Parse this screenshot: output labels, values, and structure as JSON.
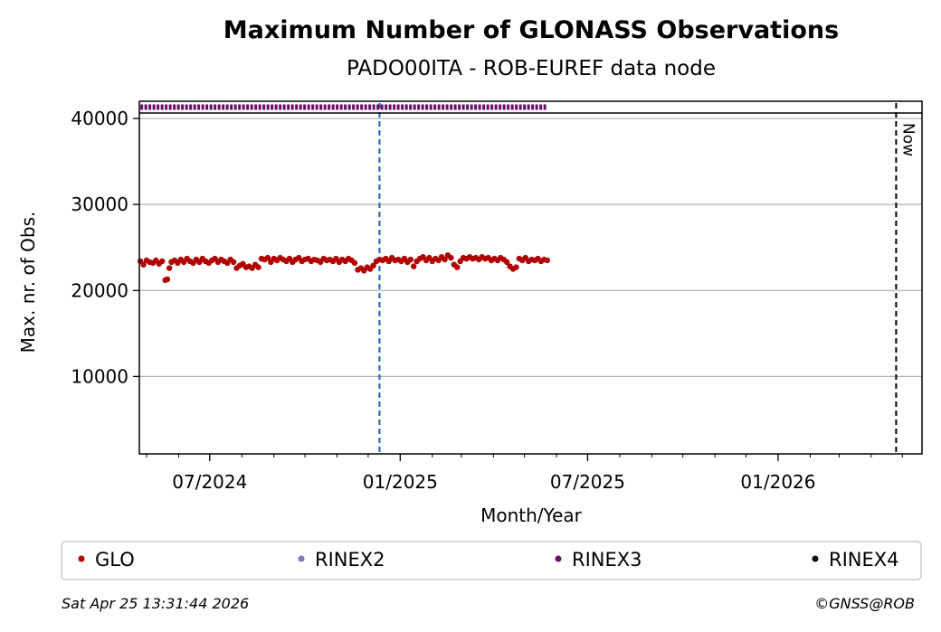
{
  "chart_data": {
    "type": "scatter",
    "title": "Maximum Number of GLONASS Observations",
    "subtitle": "PADO00ITA - ROB-EUREF data node",
    "xlabel": "Month/Year",
    "ylabel": "Max. nr. of Obs.",
    "x_ticks": [
      {
        "date": "2024-07-01",
        "label": "07/2024"
      },
      {
        "date": "2025-01-01",
        "label": "01/2025"
      },
      {
        "date": "2025-07-01",
        "label": "07/2025"
      },
      {
        "date": "2026-01-01",
        "label": "01/2026"
      }
    ],
    "y_ticks": [
      10000,
      20000,
      30000,
      40000
    ],
    "xlim": [
      "2024-04-24",
      "2026-05-20"
    ],
    "ylim": [
      1000,
      42000
    ],
    "grid": "horizontal",
    "vertical_markers": [
      {
        "date": "2024-12-12",
        "color": "#1a5fb4",
        "style": "dashed",
        "label": ""
      },
      {
        "date": "2026-04-25",
        "color": "#000000",
        "style": "dashed",
        "label": "Now"
      }
    ],
    "series": [
      {
        "name": "GLO",
        "color": "#b00000",
        "points": [
          [
            "2024-04-25",
            23400
          ],
          [
            "2024-04-28",
            23000
          ],
          [
            "2024-05-01",
            23500
          ],
          [
            "2024-05-04",
            23300
          ],
          [
            "2024-05-07",
            23200
          ],
          [
            "2024-05-10",
            23500
          ],
          [
            "2024-05-13",
            23100
          ],
          [
            "2024-05-16",
            23400
          ],
          [
            "2024-05-19",
            21200
          ],
          [
            "2024-05-21",
            21300
          ],
          [
            "2024-05-23",
            22600
          ],
          [
            "2024-05-25",
            23300
          ],
          [
            "2024-05-28",
            23500
          ],
          [
            "2024-05-31",
            23200
          ],
          [
            "2024-06-03",
            23600
          ],
          [
            "2024-06-06",
            23300
          ],
          [
            "2024-06-09",
            23700
          ],
          [
            "2024-06-12",
            23400
          ],
          [
            "2024-06-15",
            23200
          ],
          [
            "2024-06-18",
            23600
          ],
          [
            "2024-06-21",
            23300
          ],
          [
            "2024-06-24",
            23700
          ],
          [
            "2024-06-27",
            23400
          ],
          [
            "2024-06-30",
            23200
          ],
          [
            "2024-07-03",
            23500
          ],
          [
            "2024-07-06",
            23700
          ],
          [
            "2024-07-09",
            23300
          ],
          [
            "2024-07-12",
            23600
          ],
          [
            "2024-07-15",
            23400
          ],
          [
            "2024-07-18",
            23200
          ],
          [
            "2024-07-21",
            23600
          ],
          [
            "2024-07-24",
            23300
          ],
          [
            "2024-07-27",
            22600
          ],
          [
            "2024-07-30",
            22900
          ],
          [
            "2024-08-02",
            23100
          ],
          [
            "2024-08-05",
            22700
          ],
          [
            "2024-08-08",
            22800
          ],
          [
            "2024-08-11",
            22600
          ],
          [
            "2024-08-14",
            23000
          ],
          [
            "2024-08-17",
            22700
          ],
          [
            "2024-08-20",
            23700
          ],
          [
            "2024-08-23",
            23600
          ],
          [
            "2024-08-26",
            23800
          ],
          [
            "2024-08-29",
            23300
          ],
          [
            "2024-09-01",
            23700
          ],
          [
            "2024-09-04",
            23500
          ],
          [
            "2024-09-07",
            23800
          ],
          [
            "2024-09-10",
            23600
          ],
          [
            "2024-09-13",
            23400
          ],
          [
            "2024-09-16",
            23700
          ],
          [
            "2024-09-19",
            23300
          ],
          [
            "2024-09-22",
            23600
          ],
          [
            "2024-09-25",
            23800
          ],
          [
            "2024-09-28",
            23400
          ],
          [
            "2024-10-01",
            23600
          ],
          [
            "2024-10-04",
            23700
          ],
          [
            "2024-10-07",
            23400
          ],
          [
            "2024-10-10",
            23600
          ],
          [
            "2024-10-13",
            23500
          ],
          [
            "2024-10-16",
            23300
          ],
          [
            "2024-10-19",
            23700
          ],
          [
            "2024-10-22",
            23500
          ],
          [
            "2024-10-25",
            23600
          ],
          [
            "2024-10-28",
            23400
          ],
          [
            "2024-10-31",
            23700
          ],
          [
            "2024-11-03",
            23300
          ],
          [
            "2024-11-06",
            23600
          ],
          [
            "2024-11-09",
            23400
          ],
          [
            "2024-11-12",
            23700
          ],
          [
            "2024-11-15",
            23500
          ],
          [
            "2024-11-18",
            23200
          ],
          [
            "2024-11-21",
            22400
          ],
          [
            "2024-11-24",
            22600
          ],
          [
            "2024-11-27",
            22300
          ],
          [
            "2024-11-30",
            22700
          ],
          [
            "2024-12-03",
            22500
          ],
          [
            "2024-12-06",
            22900
          ],
          [
            "2024-12-09",
            23400
          ],
          [
            "2024-12-12",
            23600
          ],
          [
            "2024-12-15",
            23500
          ],
          [
            "2024-12-18",
            23700
          ],
          [
            "2024-12-21",
            23400
          ],
          [
            "2024-12-24",
            23800
          ],
          [
            "2024-12-27",
            23500
          ],
          [
            "2024-12-30",
            23600
          ],
          [
            "2025-01-02",
            23400
          ],
          [
            "2025-01-05",
            23700
          ],
          [
            "2025-01-08",
            23300
          ],
          [
            "2025-01-11",
            23600
          ],
          [
            "2025-01-14",
            22800
          ],
          [
            "2025-01-17",
            23400
          ],
          [
            "2025-01-20",
            23700
          ],
          [
            "2025-01-23",
            23900
          ],
          [
            "2025-01-26",
            23500
          ],
          [
            "2025-01-29",
            23800
          ],
          [
            "2025-02-01",
            23400
          ],
          [
            "2025-02-04",
            23700
          ],
          [
            "2025-02-07",
            23500
          ],
          [
            "2025-02-10",
            23900
          ],
          [
            "2025-02-13",
            23600
          ],
          [
            "2025-02-16",
            24100
          ],
          [
            "2025-02-19",
            23800
          ],
          [
            "2025-02-22",
            23000
          ],
          [
            "2025-02-25",
            22700
          ],
          [
            "2025-02-28",
            23400
          ],
          [
            "2025-03-03",
            23800
          ],
          [
            "2025-03-06",
            23700
          ],
          [
            "2025-03-09",
            23900
          ],
          [
            "2025-03-12",
            23700
          ],
          [
            "2025-03-15",
            23800
          ],
          [
            "2025-03-18",
            23600
          ],
          [
            "2025-03-21",
            23900
          ],
          [
            "2025-03-24",
            23700
          ],
          [
            "2025-03-27",
            23800
          ],
          [
            "2025-03-30",
            23500
          ],
          [
            "2025-04-02",
            23700
          ],
          [
            "2025-04-05",
            23500
          ],
          [
            "2025-04-08",
            23800
          ],
          [
            "2025-04-11",
            23600
          ],
          [
            "2025-04-14",
            23300
          ],
          [
            "2025-04-17",
            22800
          ],
          [
            "2025-04-20",
            22500
          ],
          [
            "2025-04-23",
            22700
          ],
          [
            "2025-04-26",
            23700
          ],
          [
            "2025-04-29",
            23500
          ],
          [
            "2025-05-02",
            23800
          ],
          [
            "2025-05-05",
            23400
          ],
          [
            "2025-05-08",
            23600
          ],
          [
            "2025-05-11",
            23500
          ],
          [
            "2025-05-14",
            23700
          ],
          [
            "2025-05-17",
            23400
          ],
          [
            "2025-05-20",
            23600
          ],
          [
            "2025-05-23",
            23500
          ]
        ]
      },
      {
        "name": "RINEX2",
        "color": "#7b7bbb",
        "points": []
      },
      {
        "name": "RINEX3",
        "color": "#6a0a6a",
        "strip": true,
        "x_range": [
          "2024-04-25",
          "2025-05-23"
        ]
      },
      {
        "name": "RINEX4",
        "color": "#1a0012",
        "points": []
      }
    ],
    "legend": {
      "placement": "bottom",
      "entries": [
        "GLO",
        "RINEX2",
        "RINEX3",
        "RINEX4"
      ]
    }
  },
  "footer": {
    "timestamp": "Sat Apr 25 13:31:44 2026",
    "credit": "©GNSS@ROB"
  }
}
